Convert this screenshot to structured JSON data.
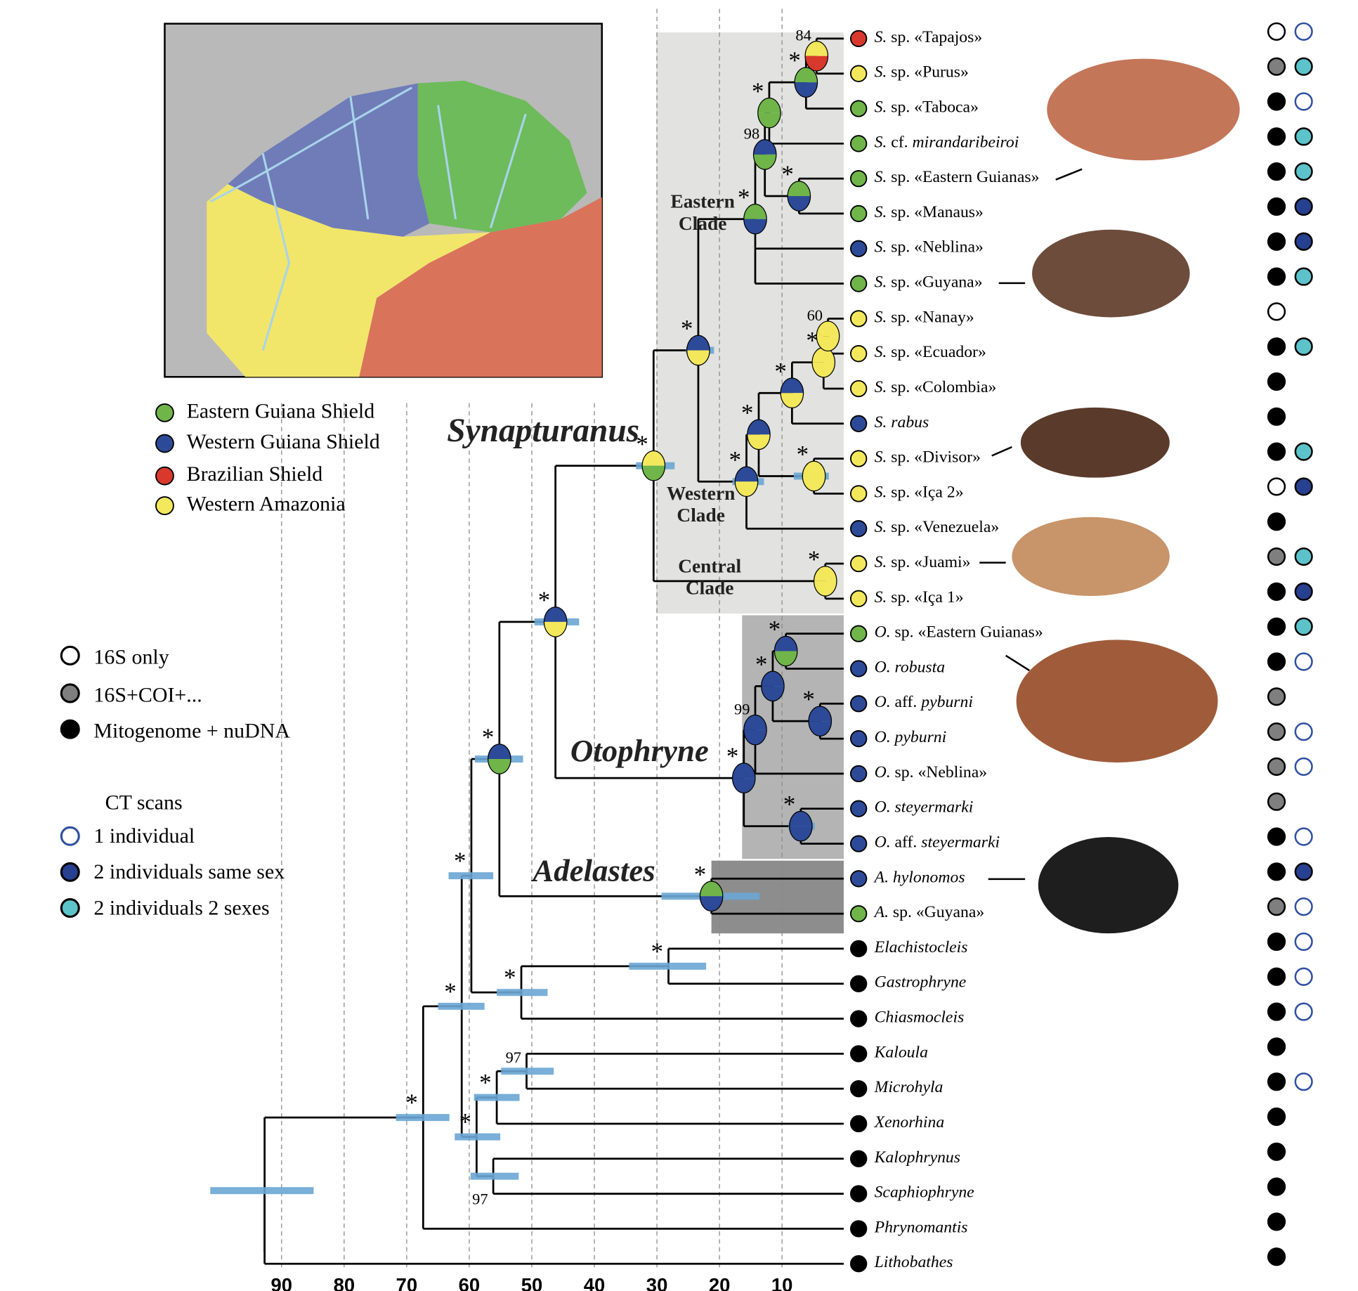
{
  "legend_regions": [
    {
      "label": "Eastern Guiana Shield",
      "color": "#6fb54a"
    },
    {
      "label": "Western Guiana Shield",
      "color": "#2d4a98"
    },
    {
      "label": "Brazilian Shield",
      "color": "#d9392c"
    },
    {
      "label": "Western Amazonia",
      "color": "#f3e85c"
    }
  ],
  "legend_data": [
    {
      "label": "16S only",
      "color": "#ffffff"
    },
    {
      "label": "16S+COI+...",
      "color": "#7f7f7f"
    },
    {
      "label": "Mitogenome + nuDNA",
      "color": "#000000"
    }
  ],
  "legend_ct": {
    "title": "CT scans",
    "items": [
      {
        "label": "1 individual",
        "fill": "#ffffff",
        "stroke": "#2f4fa0"
      },
      {
        "label": "2 individuals same sex",
        "fill": "#27408f",
        "stroke": "#000000"
      },
      {
        "label": "2 individuals 2 sexes",
        "fill": "#5cc3cb",
        "stroke": "#000000"
      }
    ]
  },
  "clades": [
    {
      "lines": [
        "Synapturanus"
      ]
    },
    {
      "lines": [
        "Otophryne"
      ]
    },
    {
      "lines": [
        "Adelastes"
      ]
    },
    {
      "lines": [
        "Eastern",
        "Clade"
      ]
    },
    {
      "lines": [
        "Western",
        "Clade"
      ]
    },
    {
      "lines": [
        "Central",
        "Clade"
      ]
    }
  ],
  "taxa": [
    {
      "name": [
        {
          "text": "S.",
          "italic": true
        },
        {
          "text": " sp. «Tapajos»",
          "italic": false
        }
      ],
      "region": "#d9392c",
      "data": "#ffffff",
      "ct": {
        "fill": "#ffffff",
        "stroke": "#2f4fa0"
      }
    },
    {
      "name": [
        {
          "text": "S.",
          "italic": true
        },
        {
          "text": " sp. «Purus»",
          "italic": false
        }
      ],
      "region": "#f3e85c",
      "data": "#7f7f7f",
      "ct": {
        "fill": "#5cc3cb",
        "stroke": "#000000"
      }
    },
    {
      "name": [
        {
          "text": "S.",
          "italic": true
        },
        {
          "text": " sp. «Taboca»",
          "italic": false
        }
      ],
      "region": "#6fb54a",
      "data": "#000000",
      "ct": {
        "fill": "#ffffff",
        "stroke": "#2f4fa0"
      }
    },
    {
      "name": [
        {
          "text": "S.",
          "italic": true
        },
        {
          "text": " cf.",
          "italic": false
        },
        {
          "text": " mirandaribeiroi",
          "italic": true
        }
      ],
      "region": "#6fb54a",
      "data": "#000000",
      "ct": {
        "fill": "#5cc3cb",
        "stroke": "#000000"
      }
    },
    {
      "name": [
        {
          "text": "S.",
          "italic": true
        },
        {
          "text": " sp. «Eastern Guianas»",
          "italic": false
        }
      ],
      "region": "#6fb54a",
      "data": "#000000",
      "ct": {
        "fill": "#5cc3cb",
        "stroke": "#000000"
      }
    },
    {
      "name": [
        {
          "text": "S.",
          "italic": true
        },
        {
          "text": " sp. «Manaus»",
          "italic": false
        }
      ],
      "region": "#6fb54a",
      "data": "#000000",
      "ct": {
        "fill": "#27408f",
        "stroke": "#000000"
      }
    },
    {
      "name": [
        {
          "text": "S.",
          "italic": true
        },
        {
          "text": " sp. «Neblina»",
          "italic": false
        }
      ],
      "region": "#2d4a98",
      "data": "#000000",
      "ct": {
        "fill": "#27408f",
        "stroke": "#000000"
      }
    },
    {
      "name": [
        {
          "text": "S.",
          "italic": true
        },
        {
          "text": " sp. «Guyana»",
          "italic": false
        }
      ],
      "region": "#6fb54a",
      "data": "#000000",
      "ct": {
        "fill": "#5cc3cb",
        "stroke": "#000000"
      }
    },
    {
      "name": [
        {
          "text": "S.",
          "italic": true
        },
        {
          "text": " sp. «Nanay»",
          "italic": false
        }
      ],
      "region": "#f3e85c",
      "data": "#ffffff",
      "ct": null
    },
    {
      "name": [
        {
          "text": "S.",
          "italic": true
        },
        {
          "text": " sp. «Ecuador»",
          "italic": false
        }
      ],
      "region": "#f3e85c",
      "data": "#000000",
      "ct": {
        "fill": "#5cc3cb",
        "stroke": "#000000"
      }
    },
    {
      "name": [
        {
          "text": "S.",
          "italic": true
        },
        {
          "text": " sp. «Colombia»",
          "italic": false
        }
      ],
      "region": "#f3e85c",
      "data": "#000000",
      "ct": null
    },
    {
      "name": [
        {
          "text": "S. rabus",
          "italic": true
        }
      ],
      "region": "#2d4a98",
      "data": "#000000",
      "ct": null
    },
    {
      "name": [
        {
          "text": "S.",
          "italic": true
        },
        {
          "text": " sp. «Divisor»",
          "italic": false
        }
      ],
      "region": "#f3e85c",
      "data": "#000000",
      "ct": {
        "fill": "#5cc3cb",
        "stroke": "#000000"
      }
    },
    {
      "name": [
        {
          "text": "S.",
          "italic": true
        },
        {
          "text": " sp. «Iça 2»",
          "italic": false
        }
      ],
      "region": "#f3e85c",
      "data": "#ffffff",
      "ct": {
        "fill": "#27408f",
        "stroke": "#000000"
      }
    },
    {
      "name": [
        {
          "text": "S.",
          "italic": true
        },
        {
          "text": " sp. «Venezuela»",
          "italic": false
        }
      ],
      "region": "#2d4a98",
      "data": "#000000",
      "ct": null
    },
    {
      "name": [
        {
          "text": "S.",
          "italic": true
        },
        {
          "text": " sp. «Juami»",
          "italic": false
        }
      ],
      "region": "#f3e85c",
      "data": "#7f7f7f",
      "ct": {
        "fill": "#5cc3cb",
        "stroke": "#000000"
      }
    },
    {
      "name": [
        {
          "text": "S.",
          "italic": true
        },
        {
          "text": " sp. «Iça 1»",
          "italic": false
        }
      ],
      "region": "#f3e85c",
      "data": "#000000",
      "ct": {
        "fill": "#27408f",
        "stroke": "#000000"
      }
    },
    {
      "name": [
        {
          "text": "O.",
          "italic": true
        },
        {
          "text": " sp. «Eastern Guianas»",
          "italic": false
        }
      ],
      "region": "#6fb54a",
      "data": "#000000",
      "ct": {
        "fill": "#5cc3cb",
        "stroke": "#000000"
      }
    },
    {
      "name": [
        {
          "text": "O. robusta",
          "italic": true
        }
      ],
      "region": "#2d4a98",
      "data": "#000000",
      "ct": {
        "fill": "#ffffff",
        "stroke": "#2f4fa0"
      }
    },
    {
      "name": [
        {
          "text": "O.",
          "italic": true
        },
        {
          "text": " aff.",
          "italic": false
        },
        {
          "text": " pyburni",
          "italic": true
        }
      ],
      "region": "#2d4a98",
      "data": "#7f7f7f",
      "ct": null
    },
    {
      "name": [
        {
          "text": "O. pyburni",
          "italic": true
        }
      ],
      "region": "#2d4a98",
      "data": "#7f7f7f",
      "ct": {
        "fill": "#ffffff",
        "stroke": "#2f4fa0"
      }
    },
    {
      "name": [
        {
          "text": "O.",
          "italic": true
        },
        {
          "text": " sp. «Neblina»",
          "italic": false
        }
      ],
      "region": "#2d4a98",
      "data": "#7f7f7f",
      "ct": {
        "fill": "#ffffff",
        "stroke": "#2f4fa0"
      }
    },
    {
      "name": [
        {
          "text": "O. steyermarki",
          "italic": true
        }
      ],
      "region": "#2d4a98",
      "data": "#7f7f7f",
      "ct": null
    },
    {
      "name": [
        {
          "text": "O.",
          "italic": true
        },
        {
          "text": " aff.",
          "italic": false
        },
        {
          "text": " steyermarki",
          "italic": true
        }
      ],
      "region": "#2d4a98",
      "data": "#000000",
      "ct": {
        "fill": "#ffffff",
        "stroke": "#2f4fa0"
      }
    },
    {
      "name": [
        {
          "text": "A. hylonomos",
          "italic": true
        }
      ],
      "region": "#2d4a98",
      "data": "#000000",
      "ct": {
        "fill": "#27408f",
        "stroke": "#000000"
      }
    },
    {
      "name": [
        {
          "text": "A.",
          "italic": true
        },
        {
          "text": " sp. «Guyana»",
          "italic": false
        }
      ],
      "region": "#6fb54a",
      "data": "#7f7f7f",
      "ct": {
        "fill": "#ffffff",
        "stroke": "#2f4fa0"
      }
    },
    {
      "name": [
        {
          "text": "Elachistocleis",
          "italic": true
        }
      ],
      "region": "#000000",
      "data": "#000000",
      "ct": {
        "fill": "#ffffff",
        "stroke": "#2f4fa0"
      }
    },
    {
      "name": [
        {
          "text": "Gastrophryne",
          "italic": true
        }
      ],
      "region": "#000000",
      "data": "#000000",
      "ct": {
        "fill": "#ffffff",
        "stroke": "#2f4fa0"
      }
    },
    {
      "name": [
        {
          "text": "Chiasmocleis",
          "italic": true
        }
      ],
      "region": "#000000",
      "data": "#000000",
      "ct": {
        "fill": "#ffffff",
        "stroke": "#2f4fa0"
      }
    },
    {
      "name": [
        {
          "text": "Kaloula",
          "italic": true
        }
      ],
      "region": "#000000",
      "data": "#000000",
      "ct": null
    },
    {
      "name": [
        {
          "text": "Microhyla",
          "italic": true
        }
      ],
      "region": "#000000",
      "data": "#000000",
      "ct": {
        "fill": "#ffffff",
        "stroke": "#2f4fa0"
      }
    },
    {
      "name": [
        {
          "text": "Xenorhina",
          "italic": true
        }
      ],
      "region": "#000000",
      "data": "#000000",
      "ct": null
    },
    {
      "name": [
        {
          "text": "Kalophrynus",
          "italic": true
        }
      ],
      "region": "#000000",
      "data": "#000000",
      "ct": null
    },
    {
      "name": [
        {
          "text": "Scaphiophryne",
          "italic": true
        }
      ],
      "region": "#000000",
      "data": "#000000",
      "ct": null
    },
    {
      "name": [
        {
          "text": "Phrynomantis",
          "italic": true
        }
      ],
      "region": "#000000",
      "data": "#000000",
      "ct": null
    },
    {
      "name": [
        {
          "text": "Lithobathes",
          "italic": true
        }
      ],
      "region": "#000000",
      "data": "#000000",
      "ct": null
    }
  ],
  "supports": [
    null,
    "*",
    "*",
    "*",
    "*",
    "*",
    "*",
    "*",
    "*",
    "98",
    "*",
    "*",
    "84",
    "*",
    "*",
    "*",
    "*",
    "*",
    "60",
    "*",
    "*",
    "*",
    "99",
    "*",
    "*",
    "*",
    "*",
    "*",
    "*",
    "*",
    "*",
    "*",
    "97",
    "97"
  ],
  "time_axis": {
    "lim": [
      100,
      0
    ],
    "ticks": [
      90,
      80,
      70,
      60,
      50,
      40,
      30,
      20,
      10
    ]
  }
}
